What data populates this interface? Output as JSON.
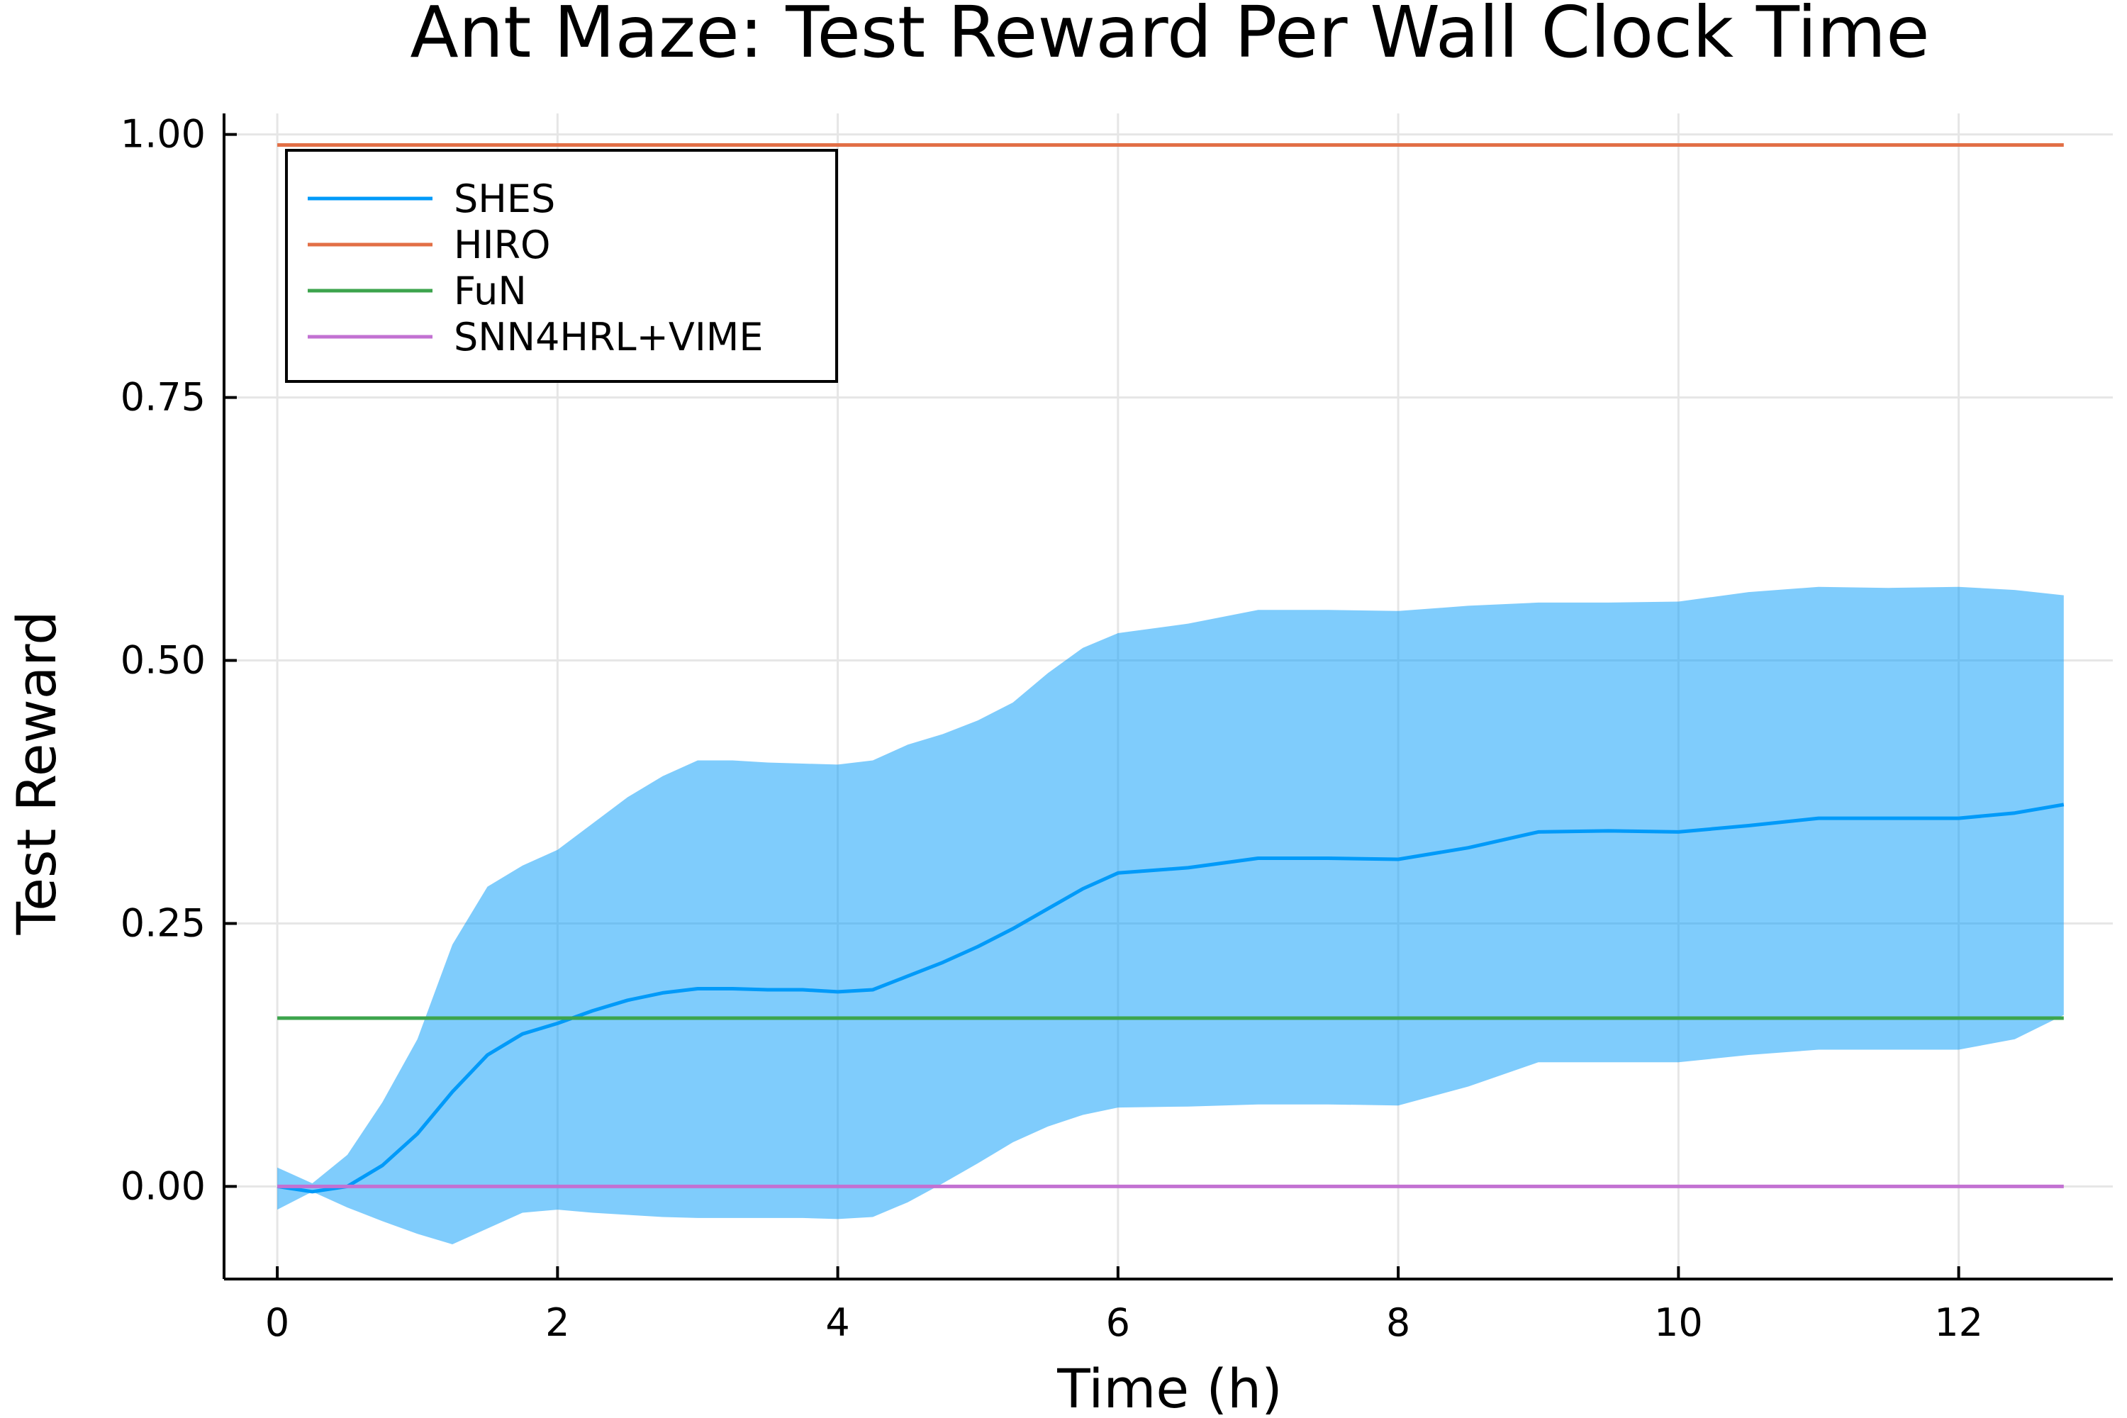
{
  "chart_data": {
    "type": "line",
    "title": "Ant Maze: Test Reward Per Wall Clock Time",
    "xlabel": "Time (h)",
    "ylabel": "Test Reward",
    "xlim": [
      -0.38,
      13.1
    ],
    "ylim": [
      -0.088,
      1.02
    ],
    "x_ticks": [
      0,
      2,
      4,
      6,
      8,
      10,
      12
    ],
    "x_tick_labels": [
      "0",
      "2",
      "4",
      "6",
      "8",
      "10",
      "12"
    ],
    "y_ticks": [
      0.0,
      0.25,
      0.5,
      0.75,
      1.0
    ],
    "y_tick_labels": [
      "0.00",
      "0.25",
      "0.50",
      "0.75",
      "1.00"
    ],
    "grid": true,
    "legend_position": "top-left",
    "series": [
      {
        "name": "SHES",
        "color": "#009af9",
        "band_color": "#009af9",
        "x": [
          0,
          0.25,
          0.5,
          0.75,
          1.0,
          1.25,
          1.5,
          1.75,
          2.0,
          2.25,
          2.5,
          2.75,
          3.0,
          3.25,
          3.5,
          3.75,
          4.0,
          4.25,
          4.5,
          4.75,
          5.0,
          5.25,
          5.5,
          5.75,
          6.0,
          6.5,
          7.0,
          7.5,
          8.0,
          8.5,
          9.0,
          9.5,
          10.0,
          10.5,
          11.0,
          11.5,
          12.0,
          12.4,
          12.75
        ],
        "y": [
          0.0,
          -0.005,
          0.0,
          0.02,
          0.05,
          0.09,
          0.125,
          0.145,
          0.155,
          0.167,
          0.177,
          0.184,
          0.188,
          0.188,
          0.187,
          0.187,
          0.185,
          0.187,
          0.2,
          0.213,
          0.228,
          0.245,
          0.264,
          0.283,
          0.298,
          0.303,
          0.312,
          0.312,
          0.311,
          0.322,
          0.337,
          0.338,
          0.337,
          0.343,
          0.35,
          0.35,
          0.35,
          0.355,
          0.363
        ],
        "lower": [
          -0.022,
          -0.005,
          -0.02,
          -0.033,
          -0.045,
          -0.055,
          -0.04,
          -0.025,
          -0.022,
          -0.025,
          -0.027,
          -0.029,
          -0.03,
          -0.03,
          -0.03,
          -0.03,
          -0.031,
          -0.029,
          -0.015,
          0.003,
          0.022,
          0.042,
          0.057,
          0.068,
          0.075,
          0.076,
          0.078,
          0.078,
          0.077,
          0.095,
          0.118,
          0.118,
          0.118,
          0.125,
          0.13,
          0.13,
          0.13,
          0.14,
          0.163
        ],
        "upper": [
          0.018,
          0.003,
          0.03,
          0.08,
          0.14,
          0.23,
          0.285,
          0.305,
          0.32,
          0.345,
          0.37,
          0.39,
          0.405,
          0.405,
          0.403,
          0.402,
          0.401,
          0.405,
          0.42,
          0.43,
          0.443,
          0.46,
          0.488,
          0.512,
          0.526,
          0.535,
          0.548,
          0.548,
          0.547,
          0.552,
          0.555,
          0.555,
          0.556,
          0.565,
          0.57,
          0.569,
          0.57,
          0.567,
          0.562
        ]
      },
      {
        "name": "HIRO",
        "color": "#e26f46",
        "x": [
          0,
          12.75
        ],
        "y": [
          0.99,
          0.99
        ]
      },
      {
        "name": "FuN",
        "color": "#3da44d",
        "x": [
          0,
          12.75
        ],
        "y": [
          0.16,
          0.16
        ]
      },
      {
        "name": "SNN4HRL+VIME",
        "color": "#c271d2",
        "x": [
          0,
          12.75
        ],
        "y": [
          0.0,
          0.0
        ]
      }
    ]
  }
}
